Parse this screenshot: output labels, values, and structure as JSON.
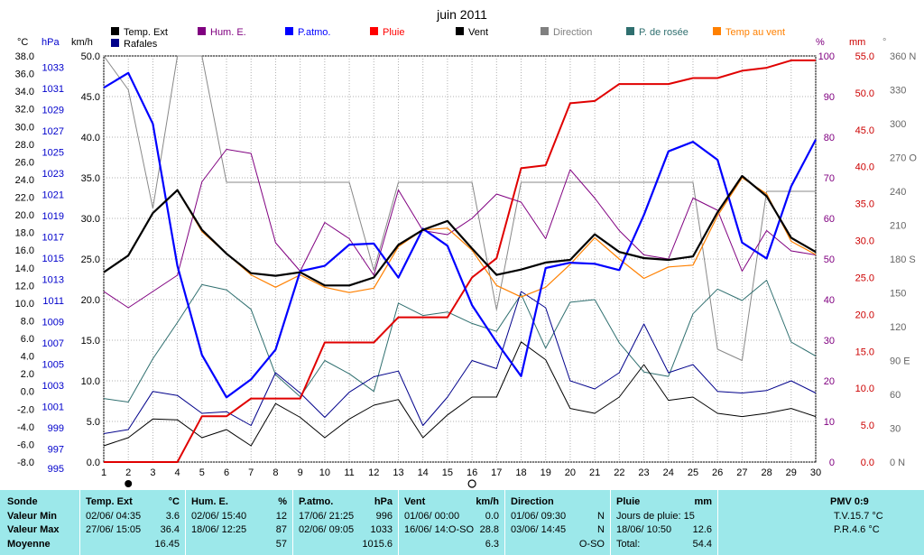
{
  "title": "juin 2011",
  "legend": [
    {
      "label": "Temp. Ext",
      "color": "#000000"
    },
    {
      "label": "Hum. E.",
      "color": "#800080"
    },
    {
      "label": "P.atmo.",
      "color": "#0000ff"
    },
    {
      "label": "Pluie",
      "color": "#ff0000"
    },
    {
      "label": "Vent",
      "color": "#000000"
    },
    {
      "label": "Direction",
      "color": "#808080"
    },
    {
      "label": "P. de rosée",
      "color": "#2f6f6f"
    },
    {
      "label": "Temp au vent",
      "color": "#ff8000"
    },
    {
      "label": "Rafales",
      "color": "#00008b"
    }
  ],
  "axes": {
    "temp_unit": "°C",
    "press_unit": "hPa",
    "wind_unit": "km/h",
    "hum_unit": "%",
    "rain_unit": "mm",
    "dir_unit": "°",
    "temp_ticks": [
      "38.0",
      "36.0",
      "34.0",
      "32.0",
      "30.0",
      "28.0",
      "26.0",
      "24.0",
      "22.0",
      "20.0",
      "18.0",
      "16.0",
      "14.0",
      "12.0",
      "10.0",
      "8.0",
      "6.0",
      "4.0",
      "2.0",
      "0.0",
      "-2.0",
      "-4.0",
      "-6.0",
      "-8.0"
    ],
    "press_ticks": [
      "1033",
      "1031",
      "1029",
      "1027",
      "1025",
      "1023",
      "1021",
      "1019",
      "1017",
      "1015",
      "1013",
      "1011",
      "1009",
      "1007",
      "1005",
      "1003",
      "1001",
      "999",
      "997",
      "995"
    ],
    "wind_ticks": [
      "50.0",
      "45.0",
      "40.0",
      "35.0",
      "30.0",
      "25.0",
      "20.0",
      "15.0",
      "10.0",
      "5.0",
      "0.0"
    ],
    "hum_ticks": [
      "100",
      "90",
      "80",
      "70",
      "60",
      "50",
      "40",
      "30",
      "20",
      "10",
      "0"
    ],
    "rain_ticks": [
      "55.0",
      "50.0",
      "45.0",
      "40.0",
      "35.0",
      "30.0",
      "25.0",
      "20.0",
      "15.0",
      "10.0",
      "5.0",
      "0.0"
    ],
    "dir_ticks": [
      "360 N",
      "330",
      "300",
      "270 O",
      "240",
      "210",
      "180 S",
      "150",
      "120",
      "90  E",
      "60",
      "30",
      "0  N"
    ],
    "x_ticks": [
      "1",
      "2",
      "3",
      "4",
      "5",
      "6",
      "7",
      "8",
      "9",
      "10",
      "11",
      "12",
      "13",
      "14",
      "15",
      "16",
      "17",
      "18",
      "19",
      "20",
      "21",
      "22",
      "23",
      "24",
      "25",
      "26",
      "27",
      "28",
      "29",
      "30"
    ]
  },
  "chart_data": {
    "type": "line",
    "title": "juin 2011",
    "x": [
      1,
      2,
      3,
      4,
      5,
      6,
      7,
      8,
      9,
      10,
      11,
      12,
      13,
      14,
      15,
      16,
      17,
      18,
      19,
      20,
      21,
      22,
      23,
      24,
      25,
      26,
      27,
      28,
      29,
      30
    ],
    "axes_ranges": {
      "temp_c": [
        -8,
        38
      ],
      "pressure_hpa": [
        995,
        1034
      ],
      "wind_kmh": [
        0,
        50
      ],
      "humidity_pct": [
        0,
        100
      ],
      "rain_mm": [
        0,
        55
      ],
      "direction_deg": [
        0,
        360
      ]
    },
    "series": [
      {
        "name": "Temp. Ext",
        "axis": "temp",
        "color": "#000000",
        "width": 2.2,
        "values": [
          13.5,
          15.4,
          20.2,
          22.8,
          18.3,
          15.6,
          13.4,
          13.1,
          13.5,
          12.0,
          12.0,
          12.9,
          16.6,
          18.3,
          19.3,
          16.2,
          13.2,
          13.8,
          14.6,
          14.9,
          17.8,
          15.8,
          15.1,
          14.9,
          15.3,
          20.3,
          24.4,
          22.1,
          17.4,
          15.8
        ]
      },
      {
        "name": "Temp au vent",
        "axis": "temp",
        "color": "#ff8000",
        "width": 1.2,
        "values": [
          13.5,
          15.4,
          20.2,
          22.8,
          18.1,
          15.6,
          13.2,
          11.8,
          13.2,
          11.8,
          11.2,
          11.7,
          16.4,
          18.3,
          18.5,
          16.0,
          12.0,
          10.7,
          11.8,
          14.4,
          17.4,
          15.0,
          12.8,
          14.1,
          14.3,
          19.9,
          24.2,
          22.4,
          17.0,
          15.5
        ]
      },
      {
        "name": "P. de rosée",
        "axis": "temp",
        "color": "#2f6f6f",
        "width": 1.0,
        "values": [
          -0.8,
          -1.2,
          3.7,
          7.8,
          12.1,
          11.5,
          9.3,
          1.9,
          -0.6,
          3.5,
          2.0,
          0.0,
          10.0,
          8.6,
          9.0,
          7.7,
          6.8,
          11.0,
          4.9,
          10.1,
          10.4,
          5.5,
          2.2,
          1.7,
          8.8,
          11.6,
          10.3,
          12.6,
          5.6,
          4.0
        ]
      },
      {
        "name": "Hum. E.",
        "axis": "hum",
        "color": "#800080",
        "width": 1.0,
        "values": [
          42,
          38,
          42,
          46,
          69,
          77,
          76,
          54,
          47,
          59,
          55,
          46,
          67,
          57,
          56,
          60,
          66,
          64,
          55,
          72,
          65,
          57,
          51,
          50,
          65,
          62,
          47,
          57,
          52,
          51
        ]
      },
      {
        "name": "P.atmo.",
        "axis": "press",
        "color": "#0000ff",
        "width": 2.2,
        "values": [
          1030.3,
          1031.7,
          1026.9,
          1013.5,
          1005.1,
          1001.1,
          1002.8,
          1005.6,
          1013.0,
          1013.5,
          1015.5,
          1015.6,
          1012.4,
          1017.0,
          1015.4,
          1009.8,
          1006.3,
          1003.1,
          1013.3,
          1013.8,
          1013.7,
          1013.1,
          1018.3,
          1024.3,
          1025.2,
          1023.5,
          1015.7,
          1014.2,
          1021.0,
          1025.4
        ]
      },
      {
        "name": "Pluie",
        "axis": "rain",
        "color": "#e00000",
        "width": 2.0,
        "values": [
          0.0,
          0.0,
          0.0,
          0.0,
          6.2,
          6.2,
          8.6,
          8.6,
          8.6,
          16.2,
          16.2,
          16.2,
          19.6,
          19.6,
          19.6,
          25.0,
          27.6,
          39.8,
          40.2,
          48.6,
          48.9,
          51.2,
          51.2,
          51.2,
          52.0,
          52.0,
          53.0,
          53.4,
          54.4,
          54.4
        ]
      },
      {
        "name": "Vent",
        "axis": "wind",
        "color": "#000000",
        "width": 1.0,
        "values": [
          2.0,
          3.0,
          5.3,
          5.2,
          3.0,
          4.0,
          2.0,
          7.2,
          5.5,
          3.0,
          5.3,
          7.0,
          7.7,
          3.0,
          5.8,
          8.0,
          8.0,
          14.8,
          12.6,
          6.6,
          6.0,
          8.0,
          12.0,
          7.6,
          8.0,
          6.0,
          5.6,
          6.0,
          6.6,
          5.6
        ]
      },
      {
        "name": "Rafales",
        "axis": "wind",
        "color": "#00008b",
        "width": 1.0,
        "values": [
          3.5,
          4.0,
          8.7,
          8.2,
          6.0,
          6.2,
          4.5,
          11.0,
          8.5,
          5.5,
          8.6,
          10.5,
          11.2,
          4.5,
          8.0,
          12.5,
          11.5,
          21.0,
          19.0,
          10.0,
          9.0,
          11.0,
          17.0,
          11.0,
          12.0,
          8.7,
          8.5,
          8.8,
          10.0,
          8.5
        ]
      },
      {
        "name": "Direction",
        "axis": "dir",
        "color": "#888888",
        "width": 1.0,
        "values": [
          360,
          330,
          225,
          360,
          360,
          248,
          248,
          248,
          248,
          248,
          248,
          170,
          248,
          248,
          248,
          248,
          135,
          248,
          248,
          248,
          248,
          248,
          248,
          248,
          248,
          100,
          90,
          240,
          240,
          240
        ]
      }
    ],
    "moon_phases": [
      {
        "day": 2,
        "symbol": "●"
      },
      {
        "day": 16,
        "symbol": "○"
      }
    ]
  },
  "stats": {
    "sonde": {
      "title": "Sonde",
      "rows": [
        "Valeur Min",
        "Valeur Max",
        "Moyenne"
      ]
    },
    "temp": {
      "title": "Temp. Ext",
      "unit": "°C",
      "min_date": "02/06/  04:35",
      "min_val": "3.6",
      "max_date": "27/06/  15:05",
      "max_val": "36.4",
      "avg": "16.45"
    },
    "hum": {
      "title": "Hum. E.",
      "unit": "%",
      "min_date": "02/06/  15:40",
      "min_val": "12",
      "max_date": "18/06/  12:25",
      "max_val": "87",
      "avg": "57"
    },
    "press": {
      "title": "P.atmo.",
      "unit": "hPa",
      "min_date": "17/06/  21:25",
      "min_val": "996",
      "max_date": "02/06/  09:05",
      "max_val": "1033",
      "avg": "1015.6"
    },
    "wind": {
      "title": "Vent",
      "unit": "km/h",
      "min_date": "01/06/  00:00",
      "min_val": "0.0",
      "max_date": "16/06/  14:O-SO",
      "max_val": "28.8",
      "avg": "6.3"
    },
    "dir": {
      "title": "Direction",
      "min_date": "01/06/  09:30",
      "min_val": "N",
      "max_date": "03/06/  14:45",
      "max_val": "N",
      "avg": "O-SO"
    },
    "rain": {
      "title": "Pluie",
      "unit": "mm",
      "line1": "Jours de pluie: 15",
      "max_date": "18/06/  10:50",
      "max_val": "12.6",
      "total_label": "Total:",
      "total": "54.4"
    },
    "pmv": {
      "title": "PMV 0:9",
      "tv": "T.V.15.7 °C",
      "pr": "P.R.4.6 °C"
    }
  }
}
